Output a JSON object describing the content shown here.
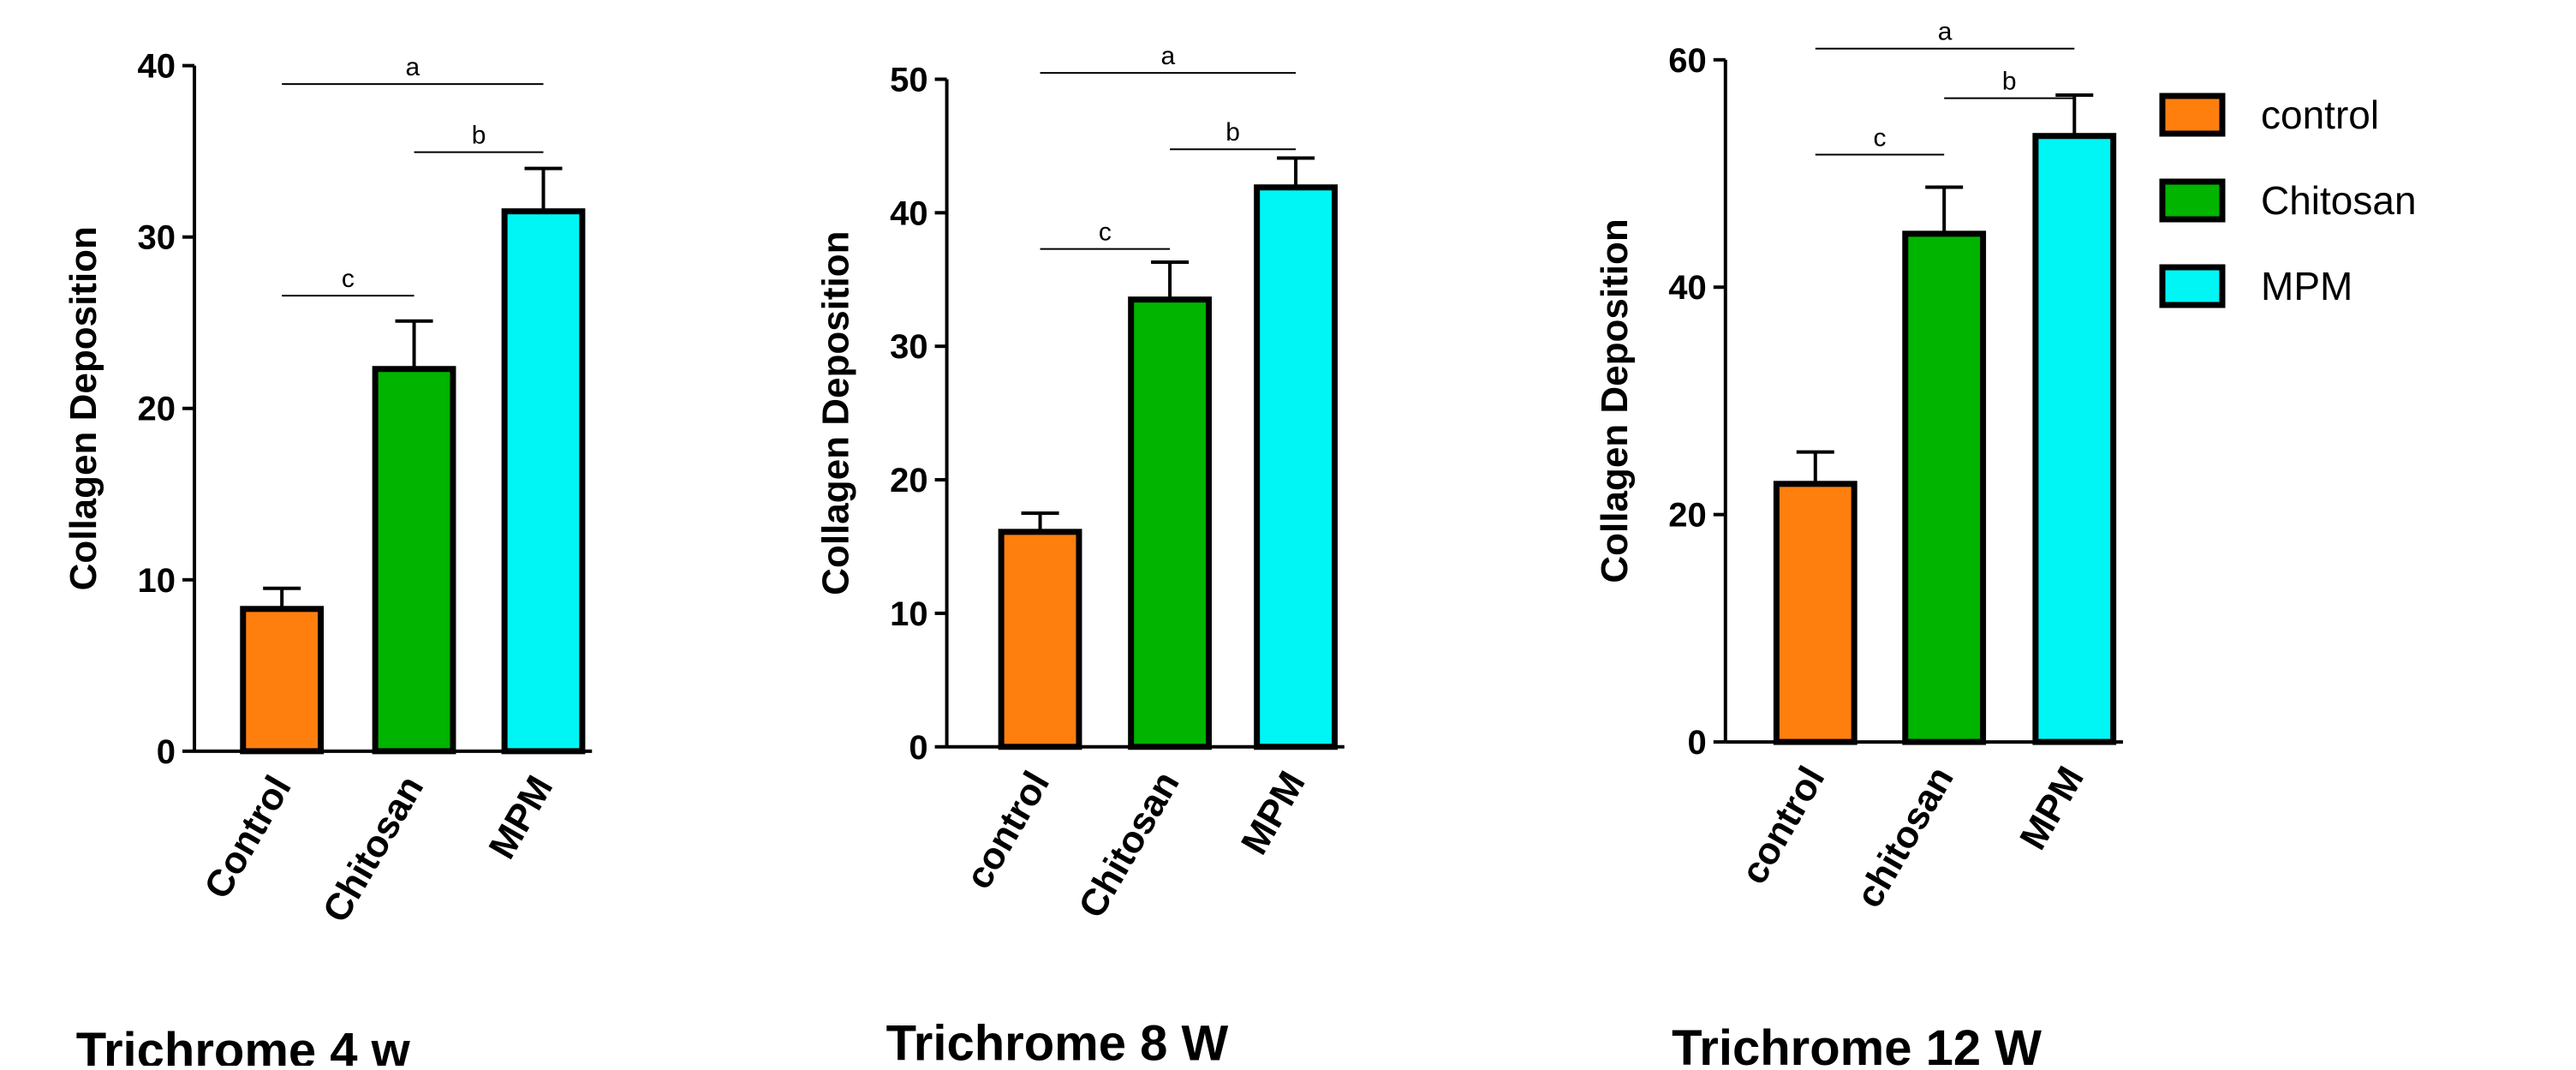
{
  "chart_data": [
    {
      "type": "bar",
      "title": "Trichrome 4 w",
      "xlabel": "",
      "ylabel": "Collagen Deposition",
      "categories": [
        "Control",
        "Chitosan",
        "MPM"
      ],
      "values": [
        8.3,
        22.3,
        31.5
      ],
      "errors": [
        1.2,
        2.8,
        2.5
      ],
      "ylim": [
        0,
        40
      ],
      "yticks": [
        0,
        10,
        20,
        30,
        40
      ],
      "significance": [
        {
          "from": 1,
          "to": 2,
          "label": "b"
        },
        {
          "from": 0,
          "to": 1,
          "label": "c"
        },
        {
          "from": 0,
          "to": 2,
          "label": "a"
        }
      ]
    },
    {
      "type": "bar",
      "title": "Trichrome 8 W",
      "title_note": "a",
      "xlabel": "",
      "ylabel": "Collagen Deposition",
      "categories": [
        "control",
        "Chitosan",
        "MPM"
      ],
      "values": [
        16.1,
        33.5,
        41.9
      ],
      "errors": [
        1.4,
        2.8,
        2.2
      ],
      "ylim": [
        0,
        50
      ],
      "yticks": [
        0,
        10,
        20,
        30,
        40,
        50
      ],
      "significance": [
        {
          "from": 1,
          "to": 2,
          "label": "b"
        },
        {
          "from": 0,
          "to": 1,
          "label": "c"
        },
        {
          "from": 0,
          "to": 2,
          "label": "a"
        }
      ]
    },
    {
      "type": "bar",
      "title": "Trichrome 12 W",
      "xlabel": "",
      "ylabel": "Collagen Deposition",
      "categories": [
        "control",
        "chitosan",
        "MPM"
      ],
      "values": [
        22.7,
        44.7,
        53.3
      ],
      "errors": [
        2.8,
        4.1,
        3.6
      ],
      "ylim": [
        0,
        60
      ],
      "yticks": [
        0,
        20,
        40,
        60
      ],
      "significance": [
        {
          "from": 1,
          "to": 2,
          "label": "b"
        },
        {
          "from": 0,
          "to": 1,
          "label": "c"
        },
        {
          "from": 0,
          "to": 2,
          "label": "a"
        }
      ]
    }
  ],
  "legend": {
    "position": "right",
    "entries": [
      {
        "label": "control",
        "color": "#ff7f0e"
      },
      {
        "label": "Chitosan",
        "color": "#00b400"
      },
      {
        "label": "MPM",
        "color": "#00f5f5"
      }
    ]
  },
  "colors": [
    "#ff7f0e",
    "#00b400",
    "#00f5f5"
  ]
}
